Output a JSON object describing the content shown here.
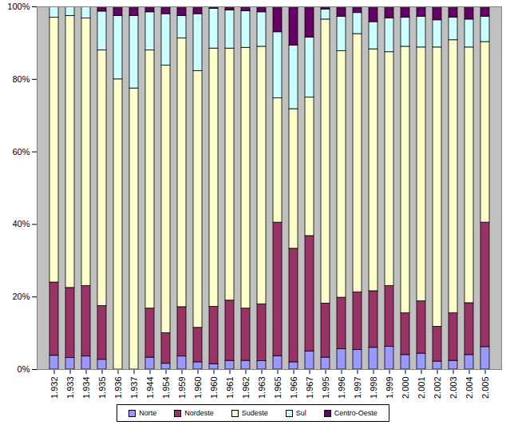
{
  "chart_data": {
    "type": "bar",
    "stacked": true,
    "legend": "bottom",
    "grid": false,
    "categories": [
      "1.932",
      "1.933",
      "1.934",
      "1.935",
      "1.936",
      "1.937",
      "1.944",
      "1.954",
      "1.959",
      "1.960",
      "1.960",
      "1.961",
      "1.962",
      "1.963",
      "1.965",
      "1.966",
      "1.967",
      "1.995",
      "1.996",
      "1.997",
      "1.998",
      "1.999",
      "2.000",
      "2.001",
      "2.002",
      "2.003",
      "2.004",
      "2.005"
    ],
    "ylim": [
      0,
      100
    ],
    "yticks": [
      {
        "value": 0,
        "label": "0%"
      },
      {
        "value": 20,
        "label": "20%"
      },
      {
        "value": 40,
        "label": "40%"
      },
      {
        "value": 60,
        "label": "60%"
      },
      {
        "value": 80,
        "label": "80%"
      },
      {
        "value": 100,
        "label": "100%"
      }
    ],
    "series": [
      {
        "name": "Norte",
        "color": "#9999FF",
        "values": [
          3.8,
          3.2,
          3.6,
          2.7,
          0,
          0,
          3.3,
          1.6,
          3.6,
          2,
          1.5,
          2.4,
          2.4,
          2.3,
          3.7,
          2,
          5,
          3.3,
          5.6,
          5.4,
          6,
          6.3,
          4,
          4.4,
          2.2,
          2.4,
          4,
          6.2
        ]
      },
      {
        "name": "Nordeste",
        "color": "#993366",
        "values": [
          20.2,
          19.3,
          19.4,
          14.8,
          0,
          0,
          13.5,
          8.4,
          13.6,
          9.5,
          15.8,
          16.6,
          14.4,
          15.7,
          36.8,
          31.3,
          31.8,
          14.9,
          14.2,
          15.9,
          15.6,
          16.7,
          11.5,
          14.4,
          9.6,
          13.1,
          14.3,
          34.3
        ]
      },
      {
        "name": "Sudeste",
        "color": "#FFFFCC",
        "values": [
          73,
          75,
          73.8,
          70.5,
          80,
          77.5,
          71.2,
          73.8,
          74.1,
          70.8,
          71.2,
          69.5,
          71.9,
          71,
          34.3,
          38.5,
          38.2,
          78.3,
          68,
          71.2,
          66.7,
          64.5,
          73.5,
          70,
          77,
          75.3,
          70.5,
          49.8
        ]
      },
      {
        "name": "Sul",
        "color": "#CCFFFF",
        "values": [
          3,
          2.5,
          3.2,
          10.7,
          17.5,
          20,
          10.5,
          14.2,
          6.2,
          15.7,
          11,
          10.5,
          10.1,
          9.5,
          18.2,
          17.5,
          16.5,
          2.8,
          9.5,
          5.8,
          7.5,
          9.3,
          8,
          8.5,
          7.5,
          6.2,
          7.7,
          7
        ]
      },
      {
        "name": "Centro-Oeste",
        "color": "#660066",
        "values": [
          0,
          0,
          0,
          1.3,
          2.5,
          2.5,
          1.5,
          2,
          2.5,
          2,
          0.5,
          1,
          1.2,
          1.5,
          7,
          10.7,
          8.5,
          0.7,
          2.7,
          1.7,
          4.2,
          3.2,
          3,
          2.7,
          3.7,
          3,
          3.5,
          2.7
        ]
      }
    ]
  }
}
